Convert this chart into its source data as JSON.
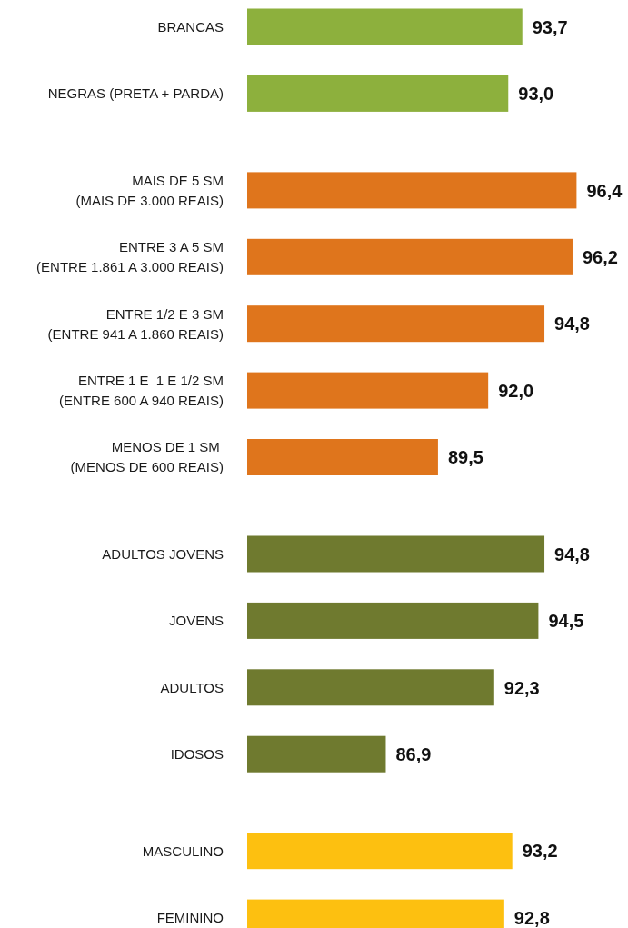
{
  "chart_data": {
    "type": "bar",
    "orientation": "horizontal",
    "categories": [
      "BRANCAS",
      "NEGRAS (PRETA + PARDA)",
      null,
      "MAIS DE 5 SM\n(MAIS DE 3.000 REAIS)",
      "ENTRE 3 A 5 SM\n(ENTRE 1.861 A 3.000 REAIS)",
      "ENTRE 1/2 E 3 SM\n(ENTRE 941 A 1.860 REAIS)",
      "ENTRE 1 E  1 E 1/2 SM\n(ENTRE 600 A 940 REAIS)",
      "MENOS DE 1 SM \n(MENOS DE 600 REAIS)",
      null,
      "ADULTOS JOVENS",
      "JOVENS",
      "ADULTOS",
      "IDOSOS",
      null,
      "MASCULINO",
      "FEMININO"
    ],
    "values": [
      93.7,
      93.0,
      null,
      96.4,
      96.2,
      94.8,
      92.0,
      89.5,
      null,
      94.8,
      94.5,
      92.3,
      86.9,
      null,
      93.2,
      92.8
    ],
    "colors": [
      "#8db03d",
      "#8db03d",
      null,
      "#df751c",
      "#df751c",
      "#df751c",
      "#df751c",
      "#df751c",
      null,
      "#6f7a2f",
      "#6f7a2f",
      "#6f7a2f",
      "#6f7a2f",
      null,
      "#fdc010",
      "#fdc010"
    ],
    "value_labels": [
      "93,7",
      "93,0",
      null,
      "96,4",
      "96,2",
      "94,8",
      "92,0",
      "89,5",
      null,
      "94,8",
      "94,5",
      "92,3",
      "86,9",
      null,
      "93,2",
      "92,8"
    ],
    "xlim": [
      80,
      96.4
    ],
    "tick_labels": "y"
  }
}
